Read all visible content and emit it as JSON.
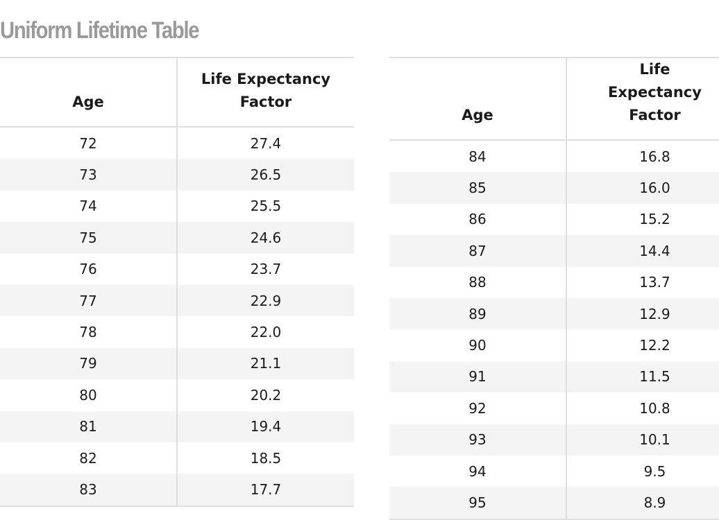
{
  "title": "Uniform Lifetime Table",
  "headers": {
    "age": "Age",
    "factor_line1": "Life Expectancy",
    "factor_line2": "Factor"
  },
  "left_rows": [
    {
      "age": "72",
      "factor": "27.4"
    },
    {
      "age": "73",
      "factor": "26.5"
    },
    {
      "age": "74",
      "factor": "25.5"
    },
    {
      "age": "75",
      "factor": "24.6"
    },
    {
      "age": "76",
      "factor": "23.7"
    },
    {
      "age": "77",
      "factor": "22.9"
    },
    {
      "age": "78",
      "factor": "22.0"
    },
    {
      "age": "79",
      "factor": "21.1"
    },
    {
      "age": "80",
      "factor": "20.2"
    },
    {
      "age": "81",
      "factor": "19.4"
    },
    {
      "age": "82",
      "factor": "18.5"
    },
    {
      "age": "83",
      "factor": "17.7"
    }
  ],
  "right_rows": [
    {
      "age": "84",
      "factor": "16.8"
    },
    {
      "age": "85",
      "factor": "16.0"
    },
    {
      "age": "86",
      "factor": "15.2"
    },
    {
      "age": "87",
      "factor": "14.4"
    },
    {
      "age": "88",
      "factor": "13.7"
    },
    {
      "age": "89",
      "factor": "12.9"
    },
    {
      "age": "90",
      "factor": "12.2"
    },
    {
      "age": "91",
      "factor": "11.5"
    },
    {
      "age": "92",
      "factor": "10.8"
    },
    {
      "age": "93",
      "factor": "10.1"
    },
    {
      "age": "94",
      "factor": "9.5"
    },
    {
      "age": "95",
      "factor": "8.9"
    }
  ]
}
